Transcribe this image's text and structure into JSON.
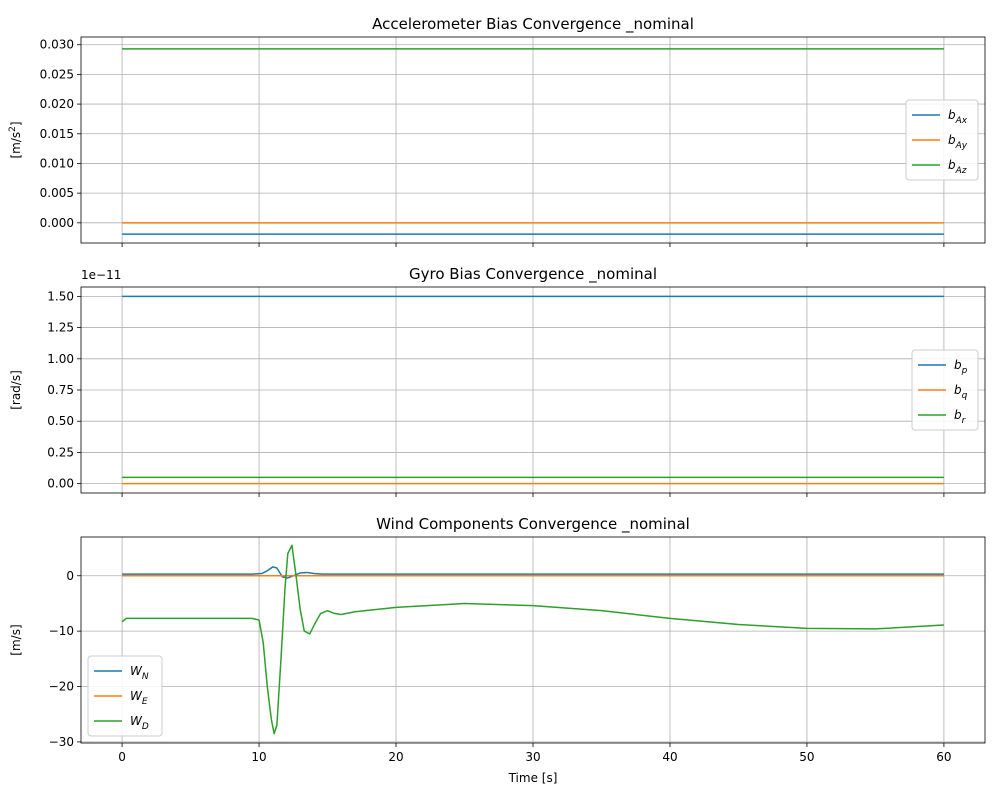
{
  "chart_data": [
    {
      "type": "line",
      "title": "Accelerometer Bias Convergence _nominal",
      "xlabel": "",
      "ylabel_base": "[m/s",
      "ylabel_sup": "2",
      "ylabel_end": "]",
      "xlim": [
        -3,
        63
      ],
      "ylim": [
        -0.0034,
        0.0313
      ],
      "xticks": [
        0,
        10,
        20,
        30,
        40,
        50,
        60
      ],
      "show_xtick_labels": false,
      "yticks": [
        0.0,
        0.005,
        0.01,
        0.015,
        0.02,
        0.025,
        0.03
      ],
      "ytick_labels": [
        "0.000",
        "0.005",
        "0.010",
        "0.015",
        "0.020",
        "0.025",
        "0.030"
      ],
      "grid": true,
      "legend_position": "center-right",
      "series": [
        {
          "name_base": "b",
          "name_sub": "Ax",
          "color": "#1f77b4",
          "x": [
            0,
            60
          ],
          "y": [
            -0.0019,
            -0.0019
          ]
        },
        {
          "name_base": "b",
          "name_sub": "Ay",
          "color": "#ff7f0e",
          "x": [
            0,
            60
          ],
          "y": [
            0.0,
            0.0
          ]
        },
        {
          "name_base": "b",
          "name_sub": "Az",
          "color": "#2ca02c",
          "x": [
            0,
            60
          ],
          "y": [
            0.0293,
            0.0293
          ]
        }
      ]
    },
    {
      "type": "line",
      "title": "Gyro Bias Convergence _nominal",
      "xlabel": "",
      "ylabel_base": "[rad/s]",
      "ylabel_sup": "",
      "ylabel_end": "",
      "offset_text": "1e−11",
      "xlim": [
        -3,
        63
      ],
      "ylim": [
        -0.075,
        1.575
      ],
      "xticks": [
        0,
        10,
        20,
        30,
        40,
        50,
        60
      ],
      "show_xtick_labels": false,
      "yticks": [
        0.0,
        0.25,
        0.5,
        0.75,
        1.0,
        1.25,
        1.5
      ],
      "ytick_labels": [
        "0.00",
        "0.25",
        "0.50",
        "0.75",
        "1.00",
        "1.25",
        "1.50"
      ],
      "grid": true,
      "legend_position": "center-right",
      "series": [
        {
          "name_base": "b",
          "name_sub": "p",
          "color": "#1f77b4",
          "x": [
            0,
            60
          ],
          "y": [
            1.5,
            1.5
          ]
        },
        {
          "name_base": "b",
          "name_sub": "q",
          "color": "#ff7f0e",
          "x": [
            0,
            60
          ],
          "y": [
            0.0,
            0.0
          ]
        },
        {
          "name_base": "b",
          "name_sub": "r",
          "color": "#2ca02c",
          "x": [
            0,
            60
          ],
          "y": [
            0.05,
            0.05
          ]
        }
      ]
    },
    {
      "type": "line",
      "title": "Wind Components Convergence _nominal",
      "xlabel": "Time [s]",
      "ylabel_base": "[m/s]",
      "ylabel_sup": "",
      "ylabel_end": "",
      "xlim": [
        -3,
        63
      ],
      "ylim": [
        -30.2,
        7.0
      ],
      "xticks": [
        0,
        10,
        20,
        30,
        40,
        50,
        60
      ],
      "xtick_labels": [
        "0",
        "10",
        "20",
        "30",
        "40",
        "50",
        "60"
      ],
      "show_xtick_labels": true,
      "yticks": [
        -30,
        -20,
        -10,
        0
      ],
      "ytick_labels": [
        "−30",
        "−20",
        "−10",
        "0"
      ],
      "grid": true,
      "legend_position": "lower-left",
      "series": [
        {
          "name_base": "W",
          "name_sub": "N",
          "color": "#1f77b4",
          "x": [
            0,
            9.5,
            10.2,
            10.6,
            11.0,
            11.3,
            11.7,
            12.1,
            12.5,
            13.0,
            13.5,
            14.0,
            14.6,
            15.5,
            20,
            30,
            40,
            50,
            60
          ],
          "y": [
            0.3,
            0.3,
            0.4,
            0.9,
            1.6,
            1.4,
            -0.2,
            -0.4,
            0.0,
            0.5,
            0.6,
            0.4,
            0.3,
            0.3,
            0.3,
            0.3,
            0.3,
            0.3,
            0.3
          ]
        },
        {
          "name_base": "W",
          "name_sub": "E",
          "color": "#ff7f0e",
          "x": [
            0,
            60
          ],
          "y": [
            0.0,
            0.0
          ]
        },
        {
          "name_base": "W",
          "name_sub": "D",
          "color": "#2ca02c",
          "x": [
            0,
            0.3,
            1,
            5,
            9.5,
            10.0,
            10.3,
            10.6,
            10.9,
            11.1,
            11.3,
            11.6,
            11.9,
            12.1,
            12.4,
            12.7,
            13.0,
            13.3,
            13.7,
            14.1,
            14.5,
            15.0,
            15.5,
            16.0,
            17.0,
            20,
            25,
            30,
            35,
            40,
            45,
            50,
            55,
            60
          ],
          "y": [
            -8.3,
            -7.7,
            -7.7,
            -7.7,
            -7.7,
            -8.0,
            -12,
            -20,
            -26,
            -28.5,
            -27,
            -15,
            -2,
            4,
            5.5,
            0,
            -6,
            -10,
            -10.5,
            -8.5,
            -6.8,
            -6.3,
            -6.8,
            -7.0,
            -6.5,
            -5.7,
            -5.0,
            -5.4,
            -6.3,
            -7.7,
            -8.8,
            -9.5,
            -9.6,
            -8.9
          ]
        }
      ]
    }
  ]
}
